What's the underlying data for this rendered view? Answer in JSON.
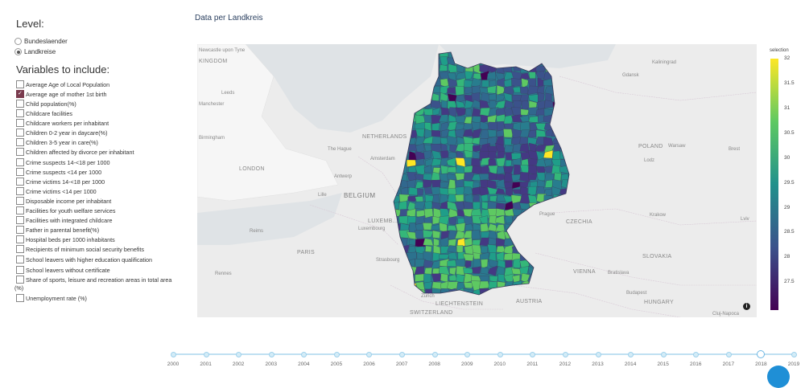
{
  "level": {
    "title": "Level:",
    "options": [
      {
        "label": "Bundeslaender",
        "selected": false
      },
      {
        "label": "Landkreise",
        "selected": true
      }
    ]
  },
  "variables": {
    "title": "Variables to include:",
    "items": [
      {
        "label": "Average Age of Local Population",
        "checked": false
      },
      {
        "label": "Average age of mother 1st birth",
        "checked": true
      },
      {
        "label": "Child population(%)",
        "checked": false
      },
      {
        "label": "Childcare facilities",
        "checked": false
      },
      {
        "label": "Childcare workers per inhabitant",
        "checked": false
      },
      {
        "label": "Children 0-2 year in daycare(%)",
        "checked": false
      },
      {
        "label": "Children 3-5 year in care(%)",
        "checked": false
      },
      {
        "label": "Children affected by divorce per inhabitant",
        "checked": false
      },
      {
        "label": "Crime suspects 14-<18 per 1000",
        "checked": false
      },
      {
        "label": "Crime suspects <14 per 1000",
        "checked": false
      },
      {
        "label": "Crime victims 14-<18 per 1000",
        "checked": false
      },
      {
        "label": "Crime victims <14 per 1000",
        "checked": false
      },
      {
        "label": "Disposable income per inhabitant",
        "checked": false
      },
      {
        "label": "Facilities for youth welfare services",
        "checked": false
      },
      {
        "label": "Facilities with integrated childcare",
        "checked": false
      },
      {
        "label": "Father in parental benefit(%)",
        "checked": false
      },
      {
        "label": "Hospital beds per 1000 inhabitants",
        "checked": false
      },
      {
        "label": "Recipients of minimum social security benefits",
        "checked": false
      },
      {
        "label": "School leavers with higher education qualification",
        "checked": false
      },
      {
        "label": "School leavers without certificate",
        "checked": false
      },
      {
        "label": "Share of sports, leisure and recreation areas in total area (%)",
        "checked": false
      },
      {
        "label": "Unemployment rate (%)",
        "checked": false
      }
    ]
  },
  "map": {
    "title": "Data per Landkreis",
    "labels": {
      "kingdom": "KINGDOM",
      "newcastle": "Newcastle upon Tyne",
      "leeds": "Leeds",
      "manchester": "Manchester",
      "birmingham": "Birmingham",
      "london": "LONDON",
      "netherlands": "NETHERLANDS",
      "hague": "The Hague",
      "amsterdam": "Amsterdam",
      "antwerp": "Antwerp",
      "lille": "Lille",
      "belgium": "BELGIUM",
      "luxembourg": "LUXEMB...",
      "luxembourg_city": "Luxembourg",
      "reims": "Reims",
      "paris": "PARIS",
      "rennes": "Rennes",
      "strasbourg": "Strasbourg",
      "zurich": "Zurich",
      "liechtenstein": "LIECHTENSTEIN",
      "switzerland": "SWITZERLAND",
      "austria": "AUSTRIA",
      "vienna": "VIENNA",
      "bratislava": "Bratislava",
      "budapest": "Budapest",
      "hungary": "HUNGARY",
      "slovakia": "SLOVAKIA",
      "czechia": "CZECHIA",
      "prague": "Prague",
      "krakow": "Krakow",
      "poland": "POLAND",
      "warsaw": "Warsaw",
      "lodz": "Lodz",
      "gdansk": "Gdansk",
      "kaliningrad": "Kaliningrad",
      "brest": "Brest",
      "lviv": "Lviv",
      "cluj": "Cluj-Napoca"
    },
    "info_icon": "info-icon"
  },
  "colorbar": {
    "title": "selection",
    "ticks": [
      "32",
      "31.5",
      "31",
      "30.5",
      "30",
      "29.5",
      "29",
      "28.5",
      "28",
      "27.5"
    ],
    "colors": [
      "#440154",
      "#3b528b",
      "#21918c",
      "#5ec962",
      "#fde725"
    ]
  },
  "slider": {
    "years": [
      "2000",
      "2001",
      "2002",
      "2003",
      "2004",
      "2005",
      "2006",
      "2007",
      "2008",
      "2009",
      "2010",
      "2011",
      "2012",
      "2013",
      "2014",
      "2015",
      "2016",
      "2017",
      "2018",
      "2019"
    ],
    "selected": "2018"
  }
}
